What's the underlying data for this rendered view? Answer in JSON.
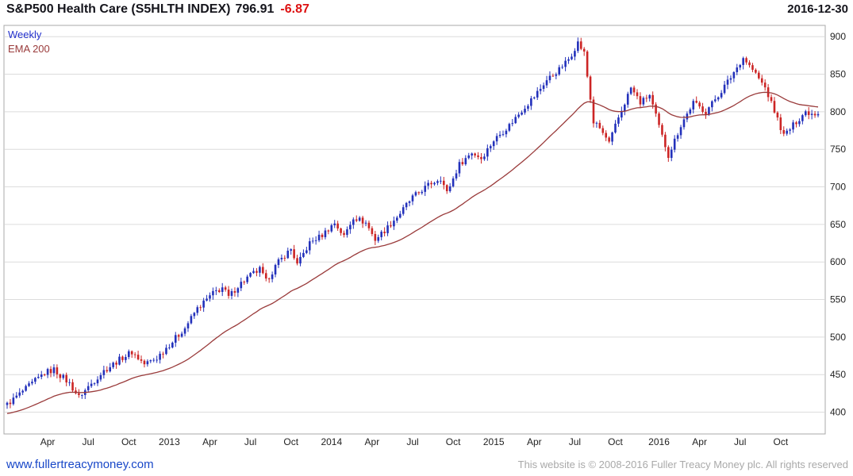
{
  "header": {
    "title": "S&P500 Health Care (S5HLTH INDEX)",
    "last_price": "796.91",
    "change": "-6.87",
    "date": "2016-12-30"
  },
  "legend": {
    "timeframe": "Weekly",
    "overlay": "EMA 200"
  },
  "footer": {
    "site_link": "www.fullertreacymoney.com",
    "copyright": "This website is © 2008-2016 Fuller Treacy Money plc. All rights reserved"
  },
  "colors": {
    "up": "#2331bb",
    "down": "#cc2525",
    "ema": "#9a3b3b",
    "change_negative": "#dd1111",
    "link": "#1847c8",
    "grid": "#dcdcdc",
    "frame": "#a8a8a8"
  },
  "chart_data": {
    "type": "candlestick",
    "title": "S&P500 Health Care (S5HLTH INDEX)",
    "timeframe": "Weekly",
    "overlay": "EMA 200",
    "ema_period_weeks": 40,
    "grid": "horizontal",
    "legend_position": "top-left",
    "ylim": [
      371,
      915
    ],
    "y_ticks": [
      400,
      450,
      500,
      550,
      600,
      650,
      700,
      750,
      800,
      850,
      900
    ],
    "x_ticks": [
      {
        "label": "Apr",
        "week": 13,
        "year": false
      },
      {
        "label": "Jul",
        "week": 26,
        "year": false
      },
      {
        "label": "Oct",
        "week": 39,
        "year": false
      },
      {
        "label": "2013",
        "week": 52,
        "year": true
      },
      {
        "label": "Apr",
        "week": 65,
        "year": false
      },
      {
        "label": "Jul",
        "week": 78,
        "year": false
      },
      {
        "label": "Oct",
        "week": 91,
        "year": false
      },
      {
        "label": "2014",
        "week": 104,
        "year": true
      },
      {
        "label": "Apr",
        "week": 117,
        "year": false
      },
      {
        "label": "Jul",
        "week": 130,
        "year": false
      },
      {
        "label": "Oct",
        "week": 143,
        "year": false
      },
      {
        "label": "2015",
        "week": 156,
        "year": true
      },
      {
        "label": "Apr",
        "week": 169,
        "year": false
      },
      {
        "label": "Jul",
        "week": 182,
        "year": false
      },
      {
        "label": "Oct",
        "week": 195,
        "year": false
      },
      {
        "label": "2016",
        "week": 209,
        "year": true
      },
      {
        "label": "Apr",
        "week": 222,
        "year": false
      },
      {
        "label": "Jul",
        "week": 235,
        "year": false
      },
      {
        "label": "Oct",
        "week": 248,
        "year": false
      }
    ],
    "weekly_closes": [
      410,
      414,
      417,
      421,
      424,
      428,
      431,
      435,
      438,
      442,
      445,
      449,
      452,
      454,
      455,
      457,
      453,
      449,
      446,
      442,
      438,
      432,
      426,
      420,
      425,
      429,
      434,
      438,
      442,
      447,
      451,
      455,
      458,
      461,
      464,
      467,
      470,
      473,
      475,
      478,
      480,
      476,
      472,
      468,
      464,
      466,
      468,
      470,
      472,
      477,
      481,
      486,
      490,
      494,
      499,
      503,
      508,
      512,
      519,
      525,
      532,
      538,
      542,
      546,
      550,
      554,
      558,
      561,
      563,
      566,
      560,
      553,
      558,
      563,
      568,
      572,
      575,
      579,
      582,
      585,
      587,
      590,
      582,
      574,
      581,
      587,
      594,
      600,
      604,
      609,
      613,
      617,
      607,
      596,
      603,
      611,
      618,
      625,
      628,
      631,
      633,
      636,
      640,
      644,
      648,
      652,
      646,
      640,
      634,
      643,
      651,
      660,
      658,
      656,
      654,
      652,
      645,
      637,
      630,
      634,
      638,
      642,
      646,
      651,
      656,
      660,
      665,
      670,
      676,
      681,
      686,
      689,
      692,
      696,
      699,
      702,
      705,
      707,
      710,
      712,
      702,
      692,
      702,
      711,
      721,
      730,
      734,
      738,
      742,
      746,
      743,
      741,
      738,
      744,
      750,
      756,
      762,
      766,
      770,
      774,
      778,
      782,
      787,
      792,
      797,
      802,
      807,
      811,
      816,
      820,
      826,
      831,
      837,
      842,
      846,
      849,
      853,
      856,
      861,
      865,
      870,
      877,
      885,
      892,
      885,
      878,
      847,
      817,
      786,
      782,
      778,
      771,
      765,
      758,
      769,
      781,
      792,
      802,
      812,
      822,
      832,
      825,
      819,
      812,
      815,
      819,
      822,
      808,
      794,
      780,
      767,
      755,
      742,
      752,
      762,
      772,
      782,
      790,
      797,
      805,
      812,
      809,
      806,
      803,
      800,
      806,
      811,
      817,
      822,
      828,
      834,
      840,
      846,
      853,
      859,
      866,
      872,
      867,
      861,
      856,
      850,
      844,
      838,
      832,
      822,
      811,
      801,
      790,
      779,
      768,
      773,
      777,
      782,
      787,
      791,
      796,
      800,
      799,
      798,
      798,
      796.91
    ],
    "last_close": 796.91,
    "last_change": -6.87
  }
}
